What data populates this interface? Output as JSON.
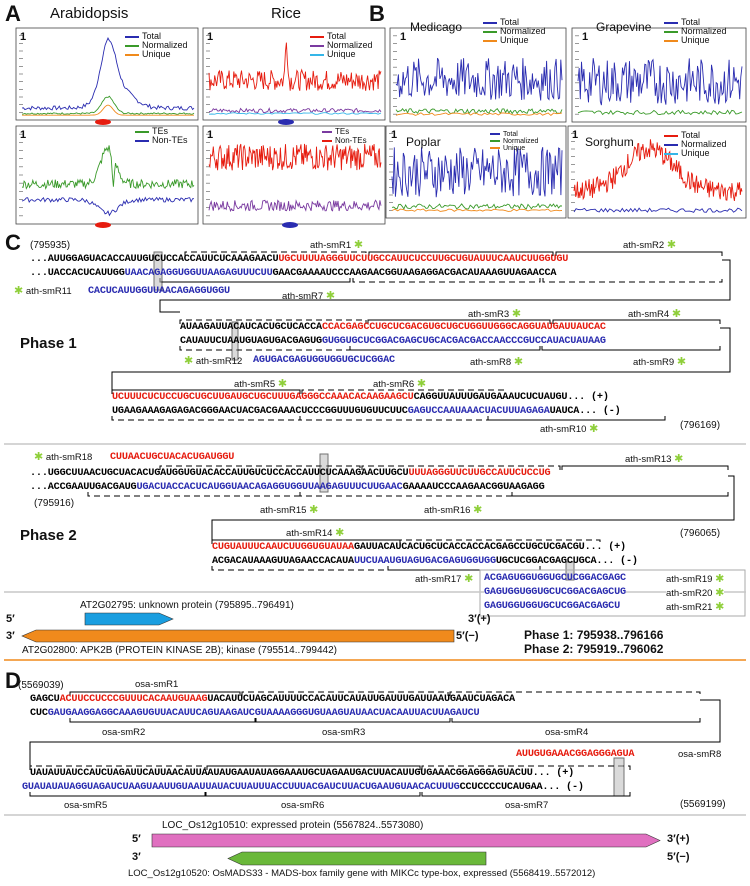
{
  "panels": {
    "A": "A",
    "B": "B",
    "C": "C",
    "D": "D"
  },
  "species": {
    "arabidopsis": "Arabidopsis",
    "rice": "Rice",
    "medicago": "Medicago",
    "grapevine": "Grapevine",
    "poplar": "Poplar",
    "sorghum": "Sorghum"
  },
  "axis_one": "1",
  "legends": {
    "total": "Total",
    "normalized": "Normalized",
    "unique": "Unique",
    "tes": "TEs",
    "non_tes": "Non-TEs"
  },
  "colors": {
    "blue": "#2a2cb0",
    "green": "#3a9a2a",
    "orange": "#f08a1c",
    "red": "#e61c0f",
    "purple": "#7a3aa0",
    "cyan": "#35b6e8",
    "star": "#8fcf3a",
    "gene_blue": "#1a9ee0",
    "gene_orange": "#f08a1c",
    "gene_pink": "#e070c0",
    "gene_green": "#6ab83a"
  },
  "panelC": {
    "coord_start": "(795935)",
    "coord_p1_end": "(796169)",
    "coord_p2_start": "(795916)",
    "coord_p2_end": "(796065)",
    "phase1": "Phase 1",
    "phase2": "Phase 2",
    "plus": "(+)",
    "minus": "(-)",
    "rows": {
      "r1": [
        [
          "k",
          "..."
        ],
        [
          "k",
          "AUUGGAGUACACCAUUGUCUCCACCAUUCUCAAAGAACU"
        ],
        [
          "r",
          "UGCUUUUAGGGUUCUUGCCAUUCUCCUUGCUGUAUUUCAAUCUUGGUGU"
        ]
      ],
      "r2": [
        [
          "k",
          "..."
        ],
        [
          "k",
          "UACCACUCAUUGG"
        ],
        [
          "bl",
          "UAACAGAGGUGGUUAAGAGUUUCUU"
        ],
        [
          "k",
          "GAACGAAAAUCCCAAGAACGGUAAGAGGACGACAUAAAGUUAGAACCA"
        ]
      ],
      "r3": [
        [
          "bl",
          "CACUCAUUGGUUAACAGAGGUGGU"
        ]
      ],
      "r4": [
        [
          "k",
          "AUAAGAUUACAUCACUGCUCACCA"
        ],
        [
          "r",
          "CCACGAGCCUGCUCGACGUGCUGCUGGUUGGGCAGGUAUGAUUAUCAC"
        ]
      ],
      "r5": [
        [
          "k",
          "CAUAUUCUAAUGUAGUGACGAGUG"
        ],
        [
          "bl",
          "GUGGUGCUCGGACGAGCUGCACGACGACCAACCCGUCCAUACUAUAAG"
        ]
      ],
      "r6": [
        [
          "bl",
          "AGUGACGAGUGGUGGUGCUCGGAC"
        ]
      ],
      "r7": [
        [
          "r",
          "UCUUUCUCUCCUGCUGCUUGAUGCUGCUUUGAGGGCCAAACACAAGAAGCU"
        ],
        [
          "k",
          "CAGGUUAUUUGAUGAAAUCUCUAUGU"
        ],
        [
          "k",
          "... (+)"
        ]
      ],
      "r8": [
        [
          "k",
          "UGAAGAAAGAGAGACGGGAACUACGACGAAACUCCCGGUUUGUGUUCUUC"
        ],
        [
          "bl",
          "GAGUCCAAUAAACUACUUUAGAGA"
        ],
        [
          "k",
          "UAUCA"
        ],
        [
          "k",
          "... (-)"
        ]
      ],
      "r9": [
        [
          "r",
          "CUUAACUGCUACACUGAUGGU"
        ]
      ],
      "r10": [
        [
          "k",
          "..."
        ],
        [
          "k",
          "UGGCUUAACUGCUACACUGAUGGUGUACACCAUUGUCUCCACCAUUCUCAAAGAACUUGCU"
        ],
        [
          "r",
          "UUUAGGGUUCUUGCCAUUCUCCUG"
        ]
      ],
      "r11": [
        [
          "k",
          "..."
        ],
        [
          "k",
          "ACCGAAUUGACGAUG"
        ],
        [
          "bl",
          "UGACUACCACUCAUGGUAACAGAGGUGGUUAAGAGUUUCUUGAAC"
        ],
        [
          "k",
          "GAAAAUCCCAAGAACGGUAAGAGG"
        ]
      ],
      "r12": [
        [
          "r",
          "CUGUAUUUCAAUCUUGGUGUAUAA"
        ],
        [
          "k",
          "GAUUACAUCACUGCUCACCACCACGAGCCUGCUCGACGU"
        ],
        [
          "k",
          "... (+)"
        ]
      ],
      "r13": [
        [
          "k",
          "ACGACAUAAAGUUAGAACCACAUA"
        ],
        [
          "bl",
          "UUCUAAUGUAGUGACGAGUGGUGG"
        ],
        [
          "k",
          "UGCUCGGACGAGCUGCA"
        ],
        [
          "k",
          "... (-)"
        ]
      ],
      "r14": [
        [
          "bl",
          "ACGAGUGGUGGUGCUCGGACGAGC"
        ]
      ],
      "r15": [
        [
          "bl",
          "GAGUGGUGGUGCUCGGACGAGCUG"
        ]
      ],
      "r16": [
        [
          "bl",
          "GAGUGGUGGUGCUCGGACGAGCU"
        ]
      ]
    },
    "labels": {
      "s1": "ath-smR1",
      "s2": "ath-smR2",
      "s3": "ath-smR3",
      "s4": "ath-smR4",
      "s5": "ath-smR5",
      "s6": "ath-smR6",
      "s7": "ath-smR7",
      "s8": "ath-smR8",
      "s9": "ath-smR9",
      "s10": "ath-smR10",
      "s11": "ath-smR11",
      "s12": "ath-smR12",
      "s13": "ath-smR13",
      "s14": "ath-smR14",
      "s15": "ath-smR15",
      "s16": "ath-smR16",
      "s17": "ath-smR17",
      "s18": "ath-smR18",
      "s19": "ath-smR19",
      "s20": "ath-smR20",
      "s21": "ath-smR21"
    },
    "genes": {
      "g1": "AT2G02795: unknown protein (795895..796491)",
      "g2": "AT2G02800: APK2B (PROTEIN KINASE 2B); kinase (795514..799442)",
      "five": "5′",
      "three": "3′",
      "three_plus": "3′(+)",
      "five_minus": "5′(−)",
      "ph1": "Phase 1: 795938..796166",
      "ph2": "Phase 2: 795919..796062"
    }
  },
  "panelD": {
    "coord_start": "(5569039)",
    "coord_end": "(5569199)",
    "rows": {
      "d1": [
        [
          "k",
          "GAGCU"
        ],
        [
          "r",
          "ACUUCCUCCCGUUUCACAAUGUAAG"
        ],
        [
          "k",
          "UACAUUCUAGCAUUUUCCACAUUCAUAUUGAUUUGAUUAAUGAAUCUAGACA"
        ]
      ],
      "d2": [
        [
          "k",
          "CUC"
        ],
        [
          "bl",
          "GAUGAAGGAGGCAAAGUGUUACAUUCAGUAAGAUCGUAAAAGGGUGUAAGUAUAACUACAAUUACUUAGAUCU"
        ]
      ],
      "d3": [
        [
          "r",
          "AUUGUGAAACGGAGGGAGUA"
        ]
      ],
      "d4": [
        [
          "k",
          "UAUAUUAUCCAUCUAGAUUCAUUAACAUUAAUAUGAAUAUAGGAAAUGCUAGAAUGACUUACAUUGUGAAACGGAGGGAGUACUU"
        ],
        [
          "k",
          "... (+)"
        ]
      ],
      "d5": [
        [
          "bl",
          "GUAUAUAUAGGUAGAUCUAAGUAAUUGUAAUUAUACUUAUUUACCUUUACGAUCUUACUGAAUGUAACACUUUG"
        ],
        [
          "k",
          "CCUCCCCUCAUGAA"
        ],
        [
          "k",
          "... (-)"
        ]
      ]
    },
    "labels": {
      "o1": "osa-smR1",
      "o2": "osa-smR2",
      "o3": "osa-smR3",
      "o4": "osa-smR4",
      "o5": "osa-smR5",
      "o6": "osa-smR6",
      "o7": "osa-smR7",
      "o8": "osa-smR8"
    },
    "genes": {
      "g1": "LOC_Os12g10510: expressed protein (5567824..5573080)",
      "g2": "LOC_Os12g10520: OsMADS33 - MADS-box family gene with MIKCc type-box, expressed (5568419..5572012)"
    }
  }
}
